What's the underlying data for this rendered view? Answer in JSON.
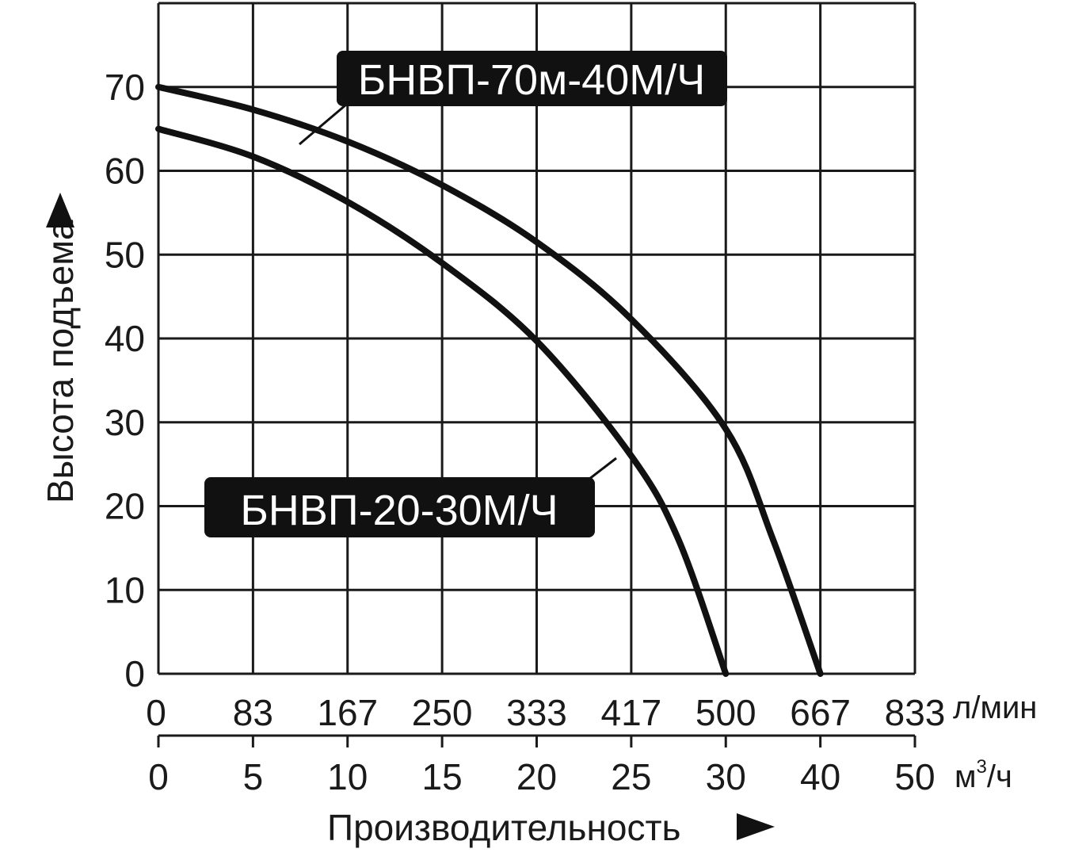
{
  "chart_data": {
    "type": "line",
    "ylabel": "Высота подъема",
    "xlabel": "Производительность",
    "y_ticks": [
      0,
      10,
      20,
      30,
      40,
      50,
      60,
      70
    ],
    "ylim": [
      0,
      80
    ],
    "x_ticks_lpm": [
      "0",
      "83",
      "167",
      "250",
      "333",
      "417",
      "500",
      "667",
      "833"
    ],
    "x_unit_lpm": "л/мин",
    "x_ticks_m3h": [
      "0",
      "5",
      "10",
      "15",
      "20",
      "25",
      "30",
      "40",
      "50"
    ],
    "x_unit_m3h_base": "м",
    "x_unit_m3h_sup": "3",
    "x_unit_m3h_tail": "/ч",
    "x_note": "x axis is categorical: equally spaced ticks 0,5,10,15,20,25,30,40,50 m3/h; x values below are tick-index positions (0-8)",
    "series": [
      {
        "name": "БНВП-70м-40М/Ч",
        "x": [
          0,
          1,
          2,
          3,
          4,
          5,
          6,
          6.5,
          7
        ],
        "y": [
          70,
          67.3,
          63.5,
          58.3,
          51.5,
          42.3,
          29.2,
          16,
          0
        ]
      },
      {
        "name": "БНВП-20-30М/Ч",
        "x": [
          0,
          1,
          2,
          3,
          4,
          5,
          5.5,
          6
        ],
        "y": [
          65,
          61.7,
          56.3,
          49,
          39.7,
          26,
          16,
          0
        ]
      }
    ]
  },
  "colors": {
    "curve": "#111111",
    "grid": "#1a1a1a",
    "callout_bg": "#111111",
    "callout_text": "#ffffff"
  }
}
